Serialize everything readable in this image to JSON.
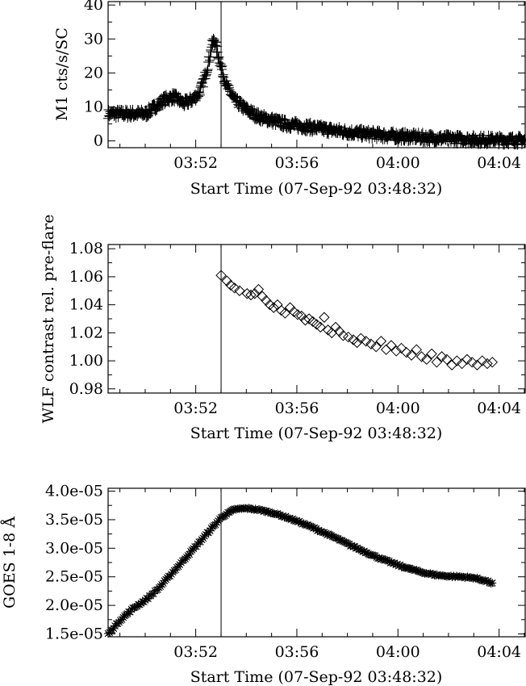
{
  "figure": {
    "x_axis_title": "Start Time (07-Sep-92 03:48:32)",
    "x_tick_labels": [
      "03:52",
      "03:56",
      "04:00",
      "04:04"
    ],
    "x_tick_minutes": [
      3.467,
      7.467,
      11.467,
      15.467
    ],
    "cursor_label": "flare-time-marker"
  },
  "chart_data": [
    {
      "type": "scatter",
      "marker": "plus",
      "ylabel": "M1 cts/s/SC",
      "xlabel": "Start Time (07-Sep-92 03:48:32)",
      "xlim": [
        0,
        16.5
      ],
      "ylim": [
        -2,
        41
      ],
      "y_ticks": [
        0,
        10,
        20,
        30,
        40
      ],
      "y_tick_labels": [
        "0",
        "10",
        "20",
        "30",
        "40"
      ],
      "vertical_line_x": 4.47,
      "profile": {
        "x": [
          0,
          1.5,
          2.2,
          2.6,
          3.0,
          3.3,
          3.6,
          3.8,
          4.0,
          4.1,
          4.2,
          4.3,
          4.5,
          4.7,
          5.0,
          5.5,
          6.0,
          7.0,
          8.0,
          9.0,
          10.0,
          11.0,
          12.0,
          13.0,
          14.0,
          15.0,
          16.5
        ],
        "y": [
          8,
          8,
          12,
          13,
          11,
          12,
          14,
          18,
          24,
          28,
          30,
          27,
          21,
          16,
          12,
          9,
          7,
          5,
          4,
          3,
          2.2,
          1.6,
          1.2,
          0.8,
          0.5,
          0.3,
          0.2
        ]
      },
      "n_points": 900,
      "scatter_amplitude": 1.4
    },
    {
      "type": "scatter",
      "marker": "diamond",
      "ylabel": "WLF contrast rel. pre-flare",
      "xlabel": "Start Time (07-Sep-92 03:48:32)",
      "xlim": [
        0,
        16.5
      ],
      "ylim": [
        0.977,
        1.083
      ],
      "y_ticks": [
        0.98,
        1.0,
        1.02,
        1.04,
        1.06,
        1.08
      ],
      "y_tick_labels": [
        "0.98",
        "1.00",
        "1.02",
        "1.04",
        "1.06",
        "1.08"
      ],
      "vertical_line_x": 4.47,
      "x": [
        4.47,
        4.7,
        4.85,
        5.0,
        5.2,
        5.5,
        5.65,
        5.8,
        5.95,
        6.1,
        6.25,
        6.4,
        6.55,
        6.7,
        6.85,
        7.0,
        7.2,
        7.35,
        7.5,
        7.65,
        7.8,
        7.95,
        8.1,
        8.25,
        8.4,
        8.55,
        8.7,
        8.85,
        9.0,
        9.15,
        9.3,
        9.5,
        9.7,
        9.85,
        10.0,
        10.2,
        10.4,
        10.6,
        10.8,
        11.0,
        11.2,
        11.4,
        11.6,
        11.8,
        12.0,
        12.2,
        12.4,
        12.6,
        12.8,
        13.0,
        13.2,
        13.4,
        13.6,
        13.8,
        14.0,
        14.2,
        14.4,
        14.6,
        14.8,
        15.0,
        15.2
      ],
      "y": [
        1.061,
        1.057,
        1.054,
        1.052,
        1.05,
        1.048,
        1.047,
        1.048,
        1.051,
        1.046,
        1.043,
        1.04,
        1.038,
        1.04,
        1.036,
        1.034,
        1.038,
        1.035,
        1.033,
        1.032,
        1.029,
        1.03,
        1.028,
        1.026,
        1.024,
        1.031,
        1.022,
        1.02,
        1.024,
        1.021,
        1.018,
        1.017,
        1.015,
        1.013,
        1.016,
        1.014,
        1.012,
        1.01,
        1.014,
        1.008,
        1.011,
        1.007,
        1.009,
        1.006,
        1.004,
        1.008,
        1.003,
        1.001,
        1.005,
        0.999,
        1.003,
        1.001,
        0.997,
        1.0,
        0.998,
        1.001,
        0.999,
        0.997,
        1.0,
        0.998,
        0.999
      ]
    },
    {
      "type": "scatter",
      "marker": "asterisk",
      "ylabel": "GOES 1-8 Å",
      "xlabel": "Start Time (07-Sep-92 03:48:32)",
      "xlim": [
        0,
        16.5
      ],
      "ylim": [
        1.45e-05,
        4.05e-05
      ],
      "y_ticks": [
        1.5e-05,
        2e-05,
        2.5e-05,
        3e-05,
        3.5e-05,
        4e-05
      ],
      "y_tick_labels": [
        "1.5e-05",
        "2.0e-05",
        "2.5e-05",
        "3.0e-05",
        "3.5e-05",
        "4.0e-05"
      ],
      "vertical_line_x": 4.47,
      "profile": {
        "x": [
          0,
          0.5,
          1.0,
          1.5,
          2.0,
          2.5,
          3.0,
          3.5,
          4.0,
          4.5,
          5.0,
          5.5,
          6.0,
          6.5,
          7.0,
          7.5,
          8.0,
          8.5,
          9.0,
          9.5,
          10.0,
          10.5,
          11.0,
          11.5,
          12.0,
          12.5,
          13.0,
          13.5,
          14.0,
          14.5,
          15.0,
          15.2
        ],
        "y": [
          1.5e-05,
          1.75e-05,
          1.95e-05,
          2.1e-05,
          2.3e-05,
          2.55e-05,
          2.8e-05,
          3.05e-05,
          3.3e-05,
          3.55e-05,
          3.68e-05,
          3.7e-05,
          3.67e-05,
          3.62e-05,
          3.55e-05,
          3.47e-05,
          3.38e-05,
          3.28e-05,
          3.18e-05,
          3.07e-05,
          2.97e-05,
          2.87e-05,
          2.78e-05,
          2.7e-05,
          2.63e-05,
          2.57e-05,
          2.53e-05,
          2.51e-05,
          2.5e-05,
          2.48e-05,
          2.42e-05,
          2.38e-05
        ]
      },
      "n_points": 280,
      "scatter_amplitude": 1.5e-07
    }
  ]
}
